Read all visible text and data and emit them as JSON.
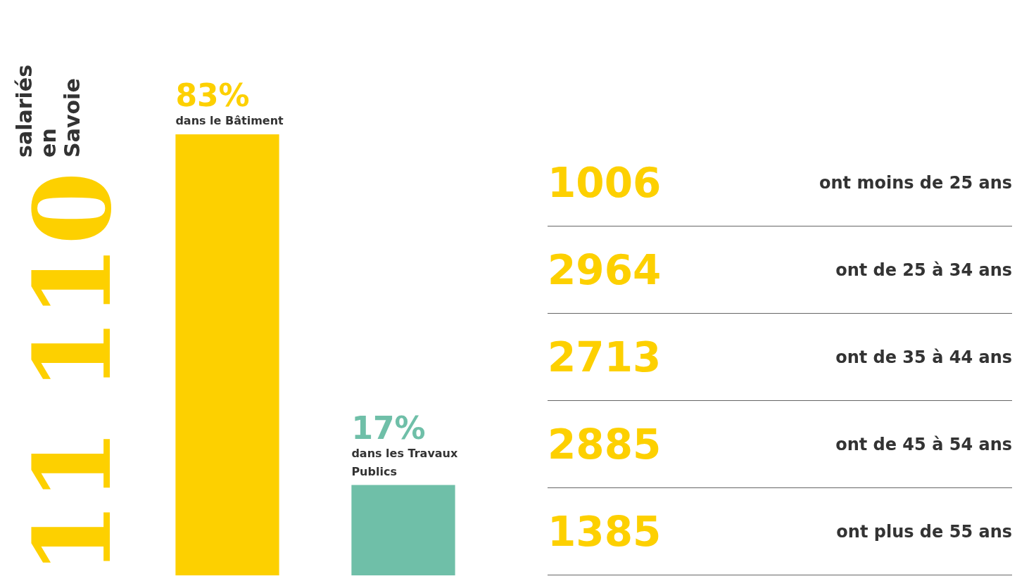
{
  "chart_data": [
    {
      "type": "bar",
      "title": "11 110",
      "subtitle": "salariés en Savoie",
      "categories": [
        "dans le Bâtiment",
        "dans les Travaux Publics"
      ],
      "values": [
        83,
        17
      ],
      "colors": [
        "#fdd000",
        "#6fbfa8"
      ],
      "value_labels": [
        "83%",
        "17%"
      ],
      "tick_labels": false,
      "legend": false
    },
    {
      "type": "other",
      "categories": [
        "ont moins de 25 ans",
        "ont de 25 à 34 ans",
        "ont de 35 à 44 ans",
        "ont de 45 à 54 ans",
        "ont plus de 55 ans"
      ],
      "values": [
        1006,
        2964,
        2713,
        2885,
        1385
      ],
      "color": "#fdd000",
      "data_labels": true
    }
  ]
}
